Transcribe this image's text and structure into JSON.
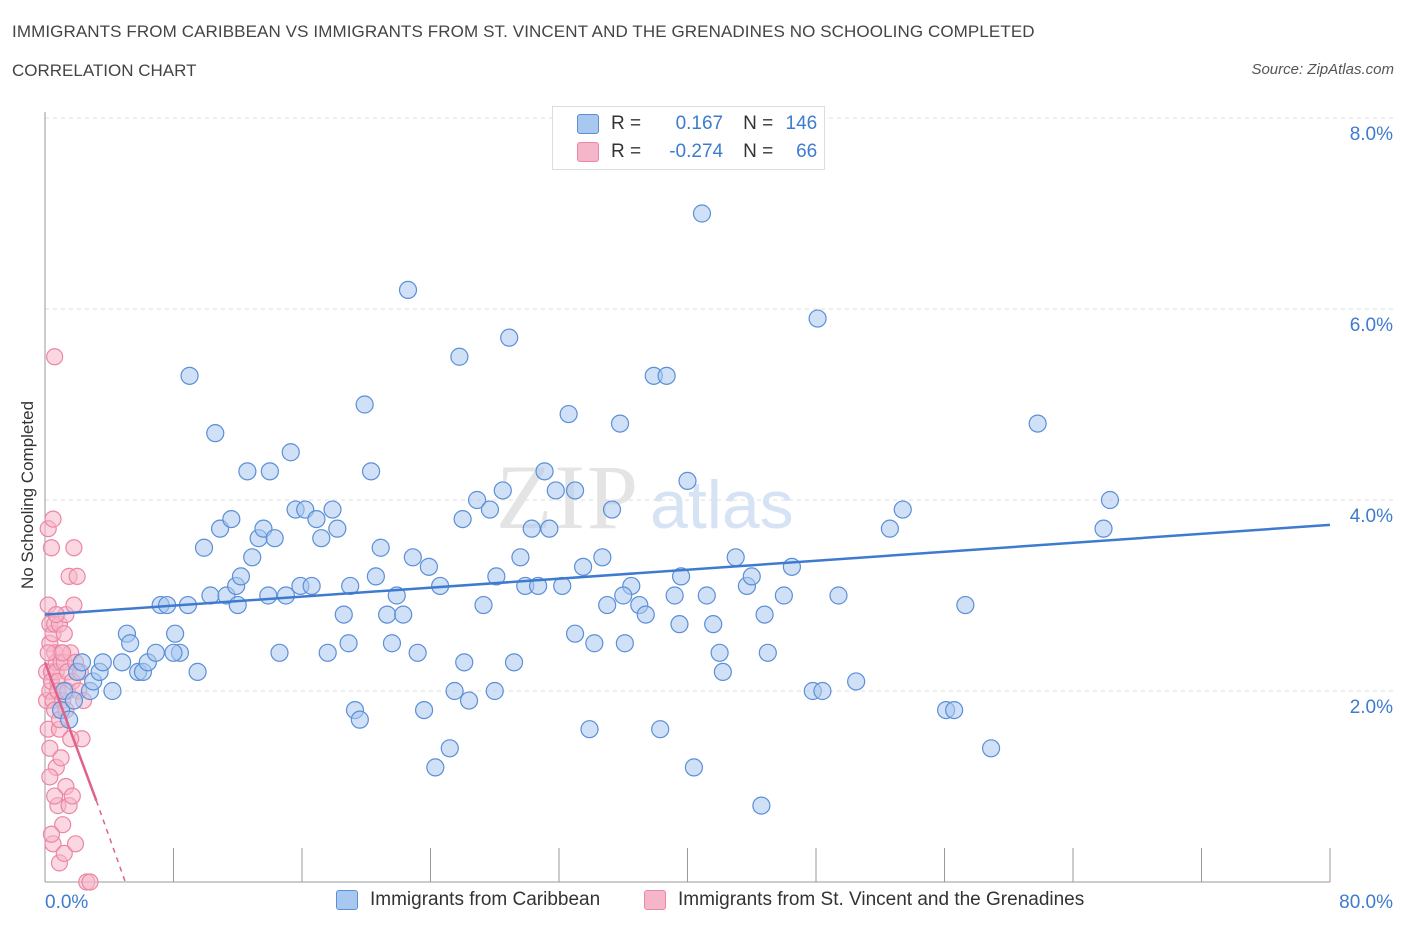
{
  "header": {
    "title": "IMMIGRANTS FROM CARIBBEAN VS IMMIGRANTS FROM ST. VINCENT AND THE GRENADINES NO SCHOOLING COMPLETED",
    "subtitle": "CORRELATION CHART",
    "source": "Source: ZipAtlas.com"
  },
  "colors": {
    "blue": "#3e7bd0",
    "blue_fill": "#a9c8f0",
    "blue_stroke": "#5b8fd6",
    "pink": "#e0618b",
    "pink_fill": "#f6b6c9",
    "pink_stroke": "#eb86a6",
    "grid": "#dddddd",
    "axis": "#999999"
  },
  "legend_top": {
    "rows": [
      {
        "r_label": "R =",
        "r_value": "0.167",
        "n_label": "N =",
        "n_value": "146",
        "series": "blue"
      },
      {
        "r_label": "R =",
        "r_value": "-0.274",
        "n_label": "N =",
        "n_value": "66",
        "series": "pink"
      }
    ]
  },
  "watermark": {
    "part1": "ZIP",
    "part2": "atlas"
  },
  "chart_data": {
    "type": "scatter",
    "title": "IMMIGRANTS FROM CARIBBEAN VS IMMIGRANTS FROM ST. VINCENT AND THE GRENADINES NO SCHOOLING COMPLETED",
    "subtitle": "CORRELATION CHART",
    "xlabel": "",
    "ylabel": "No Schooling Completed",
    "xlim": [
      0,
      80
    ],
    "ylim": [
      0,
      8
    ],
    "x_tick_labels": [
      {
        "value": 0,
        "label": "0.0%"
      },
      {
        "value": 80,
        "label": "80.0%"
      }
    ],
    "y_tick_labels": [
      {
        "value": 2,
        "label": "2.0%"
      },
      {
        "value": 4,
        "label": "4.0%"
      },
      {
        "value": 6,
        "label": "6.0%"
      },
      {
        "value": 8,
        "label": "8.0%"
      }
    ],
    "grid": true,
    "legend": "bottom",
    "series": [
      {
        "name": "Immigrants from Caribbean",
        "color": "blue",
        "r": 0.167,
        "n": 146,
        "trend": {
          "x": [
            0,
            80
          ],
          "y": [
            2.8,
            3.74
          ]
        },
        "points": [
          [
            1.0,
            1.8
          ],
          [
            1.2,
            2.0
          ],
          [
            1.5,
            1.7
          ],
          [
            1.8,
            1.9
          ],
          [
            2.0,
            2.2
          ],
          [
            2.3,
            2.3
          ],
          [
            2.8,
            2.0
          ],
          [
            3.0,
            2.1
          ],
          [
            3.4,
            2.2
          ],
          [
            3.6,
            2.3
          ],
          [
            4.2,
            2.0
          ],
          [
            4.8,
            2.3
          ],
          [
            5.1,
            2.6
          ],
          [
            5.3,
            2.5
          ],
          [
            5.8,
            2.2
          ],
          [
            6.1,
            2.2
          ],
          [
            6.4,
            2.3
          ],
          [
            6.9,
            2.4
          ],
          [
            7.2,
            2.9
          ],
          [
            7.6,
            2.9
          ],
          [
            8.1,
            2.6
          ],
          [
            8.4,
            2.4
          ],
          [
            8.9,
            2.9
          ],
          [
            9.5,
            2.2
          ],
          [
            9.9,
            3.5
          ],
          [
            10.3,
            3.0
          ],
          [
            10.6,
            4.7
          ],
          [
            10.9,
            3.7
          ],
          [
            11.3,
            3.0
          ],
          [
            11.6,
            3.8
          ],
          [
            11.9,
            3.1
          ],
          [
            12.2,
            3.2
          ],
          [
            12.6,
            4.3
          ],
          [
            12.9,
            3.4
          ],
          [
            13.3,
            3.6
          ],
          [
            13.6,
            3.7
          ],
          [
            13.9,
            3.0
          ],
          [
            14.3,
            3.6
          ],
          [
            14.6,
            2.4
          ],
          [
            15.0,
            3.0
          ],
          [
            15.3,
            4.5
          ],
          [
            15.6,
            3.9
          ],
          [
            15.9,
            3.1
          ],
          [
            16.2,
            3.9
          ],
          [
            16.6,
            3.1
          ],
          [
            16.9,
            3.8
          ],
          [
            17.2,
            3.6
          ],
          [
            17.6,
            2.4
          ],
          [
            17.9,
            3.9
          ],
          [
            18.2,
            3.7
          ],
          [
            18.6,
            2.8
          ],
          [
            18.9,
            2.5
          ],
          [
            19.3,
            1.8
          ],
          [
            19.6,
            1.7
          ],
          [
            19.9,
            5.0
          ],
          [
            20.3,
            4.3
          ],
          [
            20.6,
            3.2
          ],
          [
            20.9,
            3.5
          ],
          [
            21.3,
            2.8
          ],
          [
            21.6,
            2.5
          ],
          [
            21.9,
            3.0
          ],
          [
            22.3,
            2.8
          ],
          [
            22.6,
            6.2
          ],
          [
            22.9,
            3.4
          ],
          [
            23.2,
            2.4
          ],
          [
            23.6,
            1.8
          ],
          [
            23.9,
            3.3
          ],
          [
            24.3,
            1.2
          ],
          [
            24.6,
            3.1
          ],
          [
            25.2,
            1.4
          ],
          [
            25.5,
            2.0
          ],
          [
            25.8,
            5.5
          ],
          [
            26.1,
            2.3
          ],
          [
            26.4,
            1.9
          ],
          [
            26.9,
            4.0
          ],
          [
            27.3,
            2.9
          ],
          [
            27.7,
            3.9
          ],
          [
            28.1,
            3.2
          ],
          [
            28.5,
            4.1
          ],
          [
            28.9,
            5.7
          ],
          [
            29.2,
            2.3
          ],
          [
            29.6,
            3.4
          ],
          [
            29.9,
            3.1
          ],
          [
            30.3,
            3.7
          ],
          [
            30.7,
            3.1
          ],
          [
            31.1,
            4.3
          ],
          [
            31.4,
            3.7
          ],
          [
            31.8,
            4.1
          ],
          [
            32.2,
            3.1
          ],
          [
            32.6,
            4.9
          ],
          [
            33.0,
            2.6
          ],
          [
            33.5,
            3.3
          ],
          [
            33.9,
            1.6
          ],
          [
            34.2,
            2.5
          ],
          [
            34.7,
            3.4
          ],
          [
            35.0,
            2.9
          ],
          [
            35.3,
            3.9
          ],
          [
            35.8,
            4.8
          ],
          [
            36.1,
            2.5
          ],
          [
            36.5,
            3.1
          ],
          [
            37.0,
            2.9
          ],
          [
            37.4,
            2.8
          ],
          [
            37.9,
            5.3
          ],
          [
            38.3,
            1.6
          ],
          [
            38.7,
            5.3
          ],
          [
            39.2,
            3.0
          ],
          [
            39.6,
            3.2
          ],
          [
            40.0,
            4.2
          ],
          [
            40.4,
            1.2
          ],
          [
            40.9,
            7.0
          ],
          [
            41.2,
            3.0
          ],
          [
            41.6,
            2.7
          ],
          [
            42.2,
            2.2
          ],
          [
            43.0,
            3.4
          ],
          [
            43.7,
            3.1
          ],
          [
            44.0,
            3.2
          ],
          [
            44.6,
            0.8
          ],
          [
            44.8,
            2.8
          ],
          [
            45.0,
            2.4
          ],
          [
            46.0,
            3.0
          ],
          [
            47.8,
            2.0
          ],
          [
            48.1,
            5.9
          ],
          [
            48.4,
            2.0
          ],
          [
            49.4,
            3.0
          ],
          [
            50.5,
            2.1
          ],
          [
            52.6,
            3.7
          ],
          [
            53.4,
            3.9
          ],
          [
            56.1,
            1.8
          ],
          [
            56.6,
            1.8
          ],
          [
            57.3,
            2.9
          ],
          [
            58.9,
            1.4
          ],
          [
            61.8,
            4.8
          ],
          [
            65.9,
            3.7
          ],
          [
            66.3,
            4.0
          ],
          [
            8.0,
            2.4
          ],
          [
            12.0,
            2.9
          ],
          [
            26.0,
            3.8
          ],
          [
            36.0,
            3.0
          ],
          [
            42.0,
            2.4
          ],
          [
            46.5,
            3.3
          ],
          [
            9.0,
            5.3
          ],
          [
            14.0,
            4.3
          ],
          [
            19.0,
            3.1
          ],
          [
            28.0,
            2.0
          ],
          [
            33.0,
            4.1
          ],
          [
            39.5,
            2.7
          ]
        ]
      },
      {
        "name": "Immigrants from St. Vincent and the Grenadines",
        "color": "pink",
        "r": -0.274,
        "n": 66,
        "trend": {
          "x": [
            0,
            3.2
          ],
          "y": [
            2.3,
            0.85
          ]
        },
        "trend_ext": {
          "x": [
            3.2,
            5.0
          ],
          "y": [
            0.85,
            0.0
          ]
        },
        "points": [
          [
            0.1,
            1.9
          ],
          [
            0.1,
            2.2
          ],
          [
            0.2,
            3.7
          ],
          [
            0.2,
            2.9
          ],
          [
            0.2,
            1.6
          ],
          [
            0.3,
            2.5
          ],
          [
            0.3,
            2.0
          ],
          [
            0.3,
            2.7
          ],
          [
            0.3,
            1.4
          ],
          [
            0.4,
            2.2
          ],
          [
            0.4,
            3.5
          ],
          [
            0.4,
            2.1
          ],
          [
            0.5,
            3.8
          ],
          [
            0.5,
            2.6
          ],
          [
            0.5,
            1.9
          ],
          [
            0.5,
            0.4
          ],
          [
            0.6,
            2.4
          ],
          [
            0.6,
            1.8
          ],
          [
            0.6,
            2.7
          ],
          [
            0.6,
            5.5
          ],
          [
            0.7,
            2.3
          ],
          [
            0.7,
            2.2
          ],
          [
            0.7,
            1.2
          ],
          [
            0.8,
            2.1
          ],
          [
            0.8,
            0.8
          ],
          [
            0.8,
            2.0
          ],
          [
            0.9,
            2.7
          ],
          [
            0.9,
            1.6
          ],
          [
            0.9,
            0.2
          ],
          [
            1.0,
            2.4
          ],
          [
            1.0,
            1.3
          ],
          [
            1.0,
            2.3
          ],
          [
            1.1,
            0.6
          ],
          [
            1.1,
            1.9
          ],
          [
            1.2,
            2.6
          ],
          [
            1.2,
            2.3
          ],
          [
            1.2,
            0.3
          ],
          [
            1.3,
            2.8
          ],
          [
            1.3,
            1.0
          ],
          [
            1.4,
            2.2
          ],
          [
            1.4,
            2.0
          ],
          [
            1.5,
            3.2
          ],
          [
            1.5,
            0.8
          ],
          [
            1.6,
            2.4
          ],
          [
            1.7,
            2.1
          ],
          [
            1.7,
            0.9
          ],
          [
            1.8,
            2.9
          ],
          [
            1.8,
            3.5
          ],
          [
            1.9,
            2.3
          ],
          [
            1.9,
            0.4
          ],
          [
            2.0,
            3.2
          ],
          [
            2.1,
            2.0
          ],
          [
            2.2,
            2.2
          ],
          [
            2.3,
            1.5
          ],
          [
            2.4,
            1.9
          ],
          [
            2.6,
            0.0
          ],
          [
            2.8,
            0.0
          ],
          [
            0.2,
            2.4
          ],
          [
            0.3,
            1.1
          ],
          [
            0.4,
            0.5
          ],
          [
            0.6,
            0.9
          ],
          [
            0.7,
            2.8
          ],
          [
            0.9,
            1.7
          ],
          [
            1.1,
            2.4
          ],
          [
            1.3,
            1.8
          ],
          [
            1.6,
            1.5
          ]
        ]
      }
    ]
  },
  "x_axis": {
    "min_label": "0.0%",
    "max_label": "80.0%"
  },
  "y_axis": {
    "label": "No Schooling Completed",
    "ticks": [
      "2.0%",
      "4.0%",
      "6.0%",
      "8.0%"
    ]
  },
  "bottom_legend": {
    "items": [
      {
        "label": "Immigrants from Caribbean",
        "series": "blue"
      },
      {
        "label": "Immigrants from St. Vincent and the Grenadines",
        "series": "pink"
      }
    ]
  }
}
